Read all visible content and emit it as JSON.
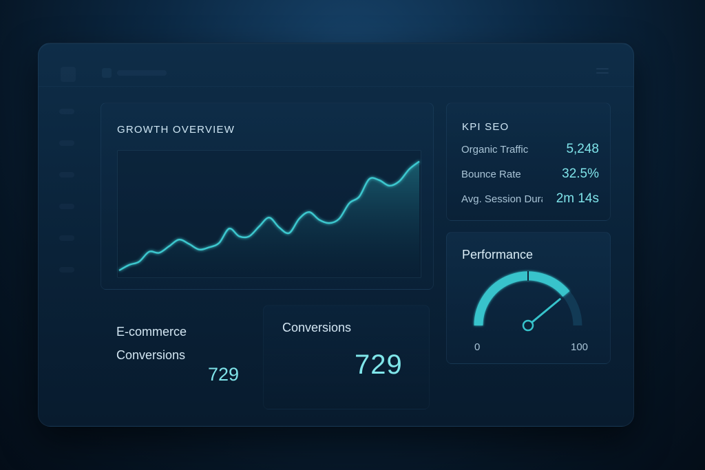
{
  "growth_overview": {
    "title": "GROWTH OVERVIEW"
  },
  "chart_data": {
    "type": "area",
    "title": "GROWTH OVERVIEW",
    "x": [
      0,
      1,
      2,
      3,
      4,
      5,
      6,
      7,
      8,
      9,
      10,
      11,
      12,
      13,
      14,
      15,
      16,
      17,
      18,
      19,
      20,
      21,
      22,
      23,
      24,
      25,
      26,
      27,
      28,
      29,
      30
    ],
    "values": [
      5,
      10,
      13,
      22,
      21,
      27,
      33,
      29,
      24,
      26,
      30,
      43,
      36,
      36,
      45,
      53,
      44,
      39,
      52,
      58,
      51,
      48,
      52,
      66,
      72,
      88,
      87,
      82,
      86,
      97,
      104
    ],
    "ylim": [
      0,
      110
    ],
    "grid": false,
    "color": "#3cc8cf"
  },
  "kpi": {
    "title": "KPI SEO",
    "items": [
      {
        "label": "Organic Traffic",
        "value": "5,248"
      },
      {
        "label": "Bounce Rate",
        "value": "32.5%"
      },
      {
        "label": "Avg. Session Dura",
        "value": "2m 14s"
      }
    ]
  },
  "performance": {
    "title": "Performance",
    "min": "0",
    "max": "100",
    "level": 0.78,
    "accent": "#37c3cb"
  },
  "ecommerce": {
    "title": "E-commerce Conversions",
    "value": "729"
  },
  "conversions": {
    "title": "Conversions",
    "value": "729"
  },
  "icons": {
    "menu": "menu-icon",
    "window": "window-control-icon"
  }
}
